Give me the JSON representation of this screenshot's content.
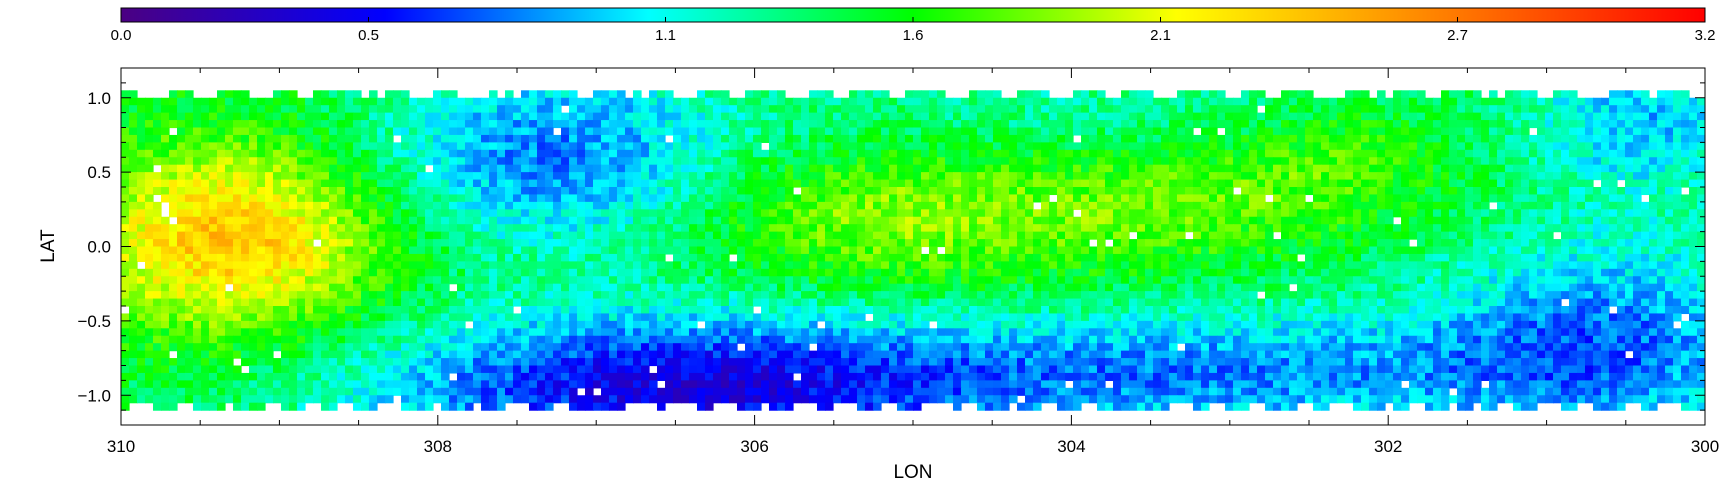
{
  "chart_data": {
    "type": "heatmap",
    "xlabel": "LON",
    "ylabel": "LAT",
    "xlim": [
      310,
      300
    ],
    "ylim": [
      -1.2,
      1.2
    ],
    "x_ticks": [
      310,
      308,
      306,
      304,
      302,
      300
    ],
    "x_tick_labels": [
      "310",
      "308",
      "306",
      "304",
      "302",
      "300"
    ],
    "y_ticks": [
      1.0,
      0.5,
      0.0,
      -0.5,
      -1.0
    ],
    "y_tick_labels": [
      "1.0",
      "0.5",
      "0.0",
      "−0.5",
      "−1.0"
    ],
    "colorbar": {
      "range": [
        0.0,
        3.2
      ],
      "ticks": [
        0.0,
        0.5,
        1.1,
        1.6,
        2.1,
        2.7,
        3.2
      ],
      "tick_labels": [
        "0.0",
        "0.5",
        "1.1",
        "1.6",
        "2.1",
        "2.7",
        "3.2"
      ],
      "colormap": [
        "#4b0082",
        "#0000ff",
        "#00ffff",
        "#00ff00",
        "#ffff00",
        "#ff8000",
        "#ff0000"
      ]
    },
    "coverage": {
      "lat_min": -1.12,
      "lat_max": 1.08
    },
    "value_field": {
      "base": 1.45,
      "components": [
        {
          "lon": 309.3,
          "lat": 0.05,
          "sigma_lon": 0.7,
          "sigma_lat": 0.45,
          "amp": 0.95
        },
        {
          "lon": 305.1,
          "lat": 0.2,
          "sigma_lon": 0.9,
          "sigma_lat": 0.35,
          "amp": 0.45
        },
        {
          "lon": 303.4,
          "lat": 0.3,
          "sigma_lon": 0.6,
          "sigma_lat": 0.3,
          "amp": 0.3
        },
        {
          "lon": 302.3,
          "lat": 0.55,
          "sigma_lon": 0.5,
          "sigma_lat": 0.3,
          "amp": 0.3
        },
        {
          "lon": 306.5,
          "lat": -0.95,
          "sigma_lon": 1.4,
          "sigma_lat": 0.35,
          "amp": -1.0
        },
        {
          "lon": 307.3,
          "lat": 0.6,
          "sigma_lon": 0.8,
          "sigma_lat": 0.45,
          "amp": -0.65
        },
        {
          "lon": 303.0,
          "lat": -0.85,
          "sigma_lon": 1.6,
          "sigma_lat": 0.3,
          "amp": -0.6
        },
        {
          "lon": 300.6,
          "lat": -0.6,
          "sigma_lon": 0.8,
          "sigma_lat": 0.5,
          "amp": -0.6
        },
        {
          "lon": 300.4,
          "lat": 0.85,
          "sigma_lon": 0.5,
          "sigma_lat": 0.35,
          "amp": -0.5
        },
        {
          "lon": 304.0,
          "lat": 0.9,
          "sigma_lon": 1.5,
          "sigma_lat": 0.25,
          "amp": -0.2
        }
      ]
    }
  }
}
